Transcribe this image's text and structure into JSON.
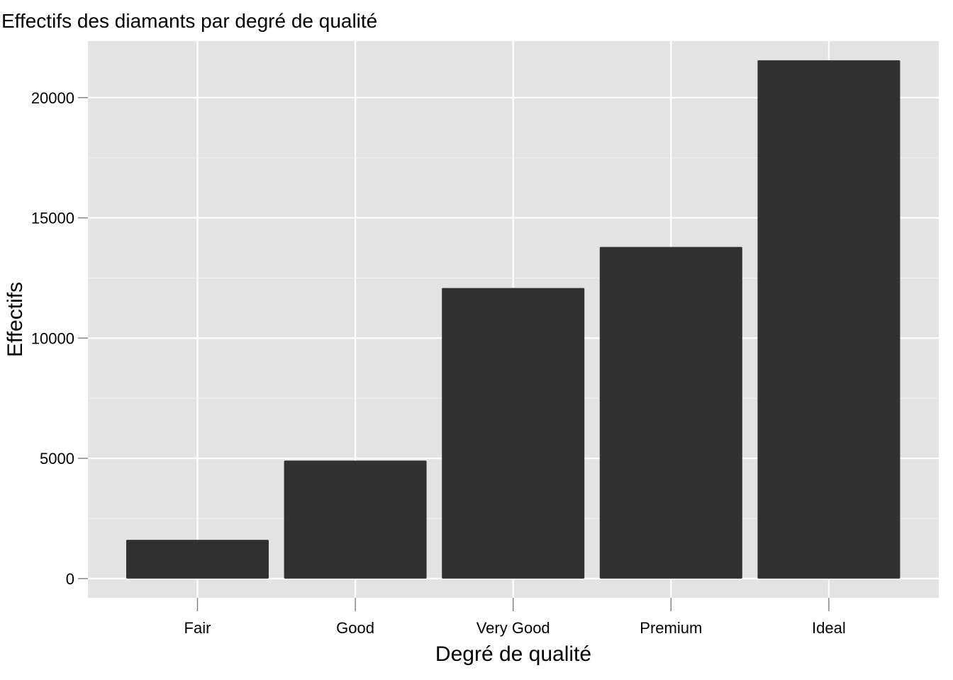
{
  "chart_data": {
    "type": "bar",
    "title": "Effectifs des diamants par degré de qualité",
    "xlabel": "Degré de qualité",
    "ylabel": "Effectifs",
    "categories": [
      "Fair",
      "Good",
      "Very Good",
      "Premium",
      "Ideal"
    ],
    "values": [
      1610,
      4906,
      12082,
      13791,
      21551
    ],
    "ylim": [
      -800,
      22350
    ],
    "yticks": [
      0,
      5000,
      10000,
      15000,
      20000
    ],
    "ytick_labels": [
      "0",
      "5000",
      "10000",
      "15000",
      "20000"
    ],
    "grid": true,
    "legend": "none"
  },
  "colors": {
    "panel_background": "#e3e3e3",
    "grid_major": "#ffffff",
    "grid_minor": "#f0f0f0",
    "bar_fill": "#313131",
    "tick_mark": "#7f7f7f",
    "text": "#000000"
  }
}
